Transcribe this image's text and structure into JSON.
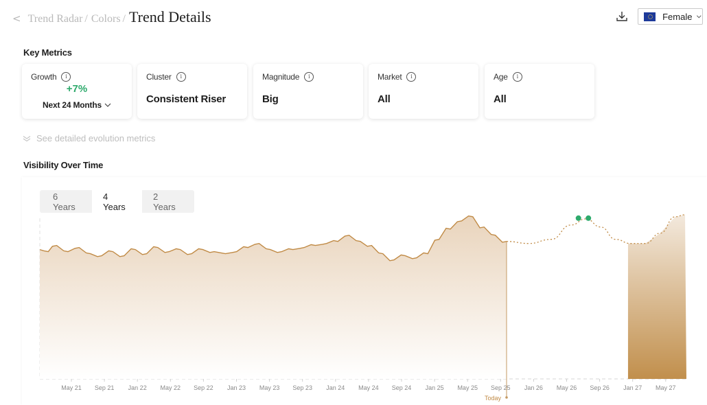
{
  "breadcrumb": {
    "back_glyph": "<",
    "items": [
      "Trend Radar",
      "Colors"
    ],
    "separator": "/",
    "current": "Trend Details"
  },
  "header": {
    "download_icon": "download-icon",
    "gender_select": {
      "flag": "eu-flag-icon",
      "value": "Female"
    }
  },
  "key_metrics": {
    "title": "Key Metrics",
    "cards": [
      {
        "label": "Growth",
        "value": "+7%",
        "period": "Next 24 Months"
      },
      {
        "label": "Cluster",
        "value": "Consistent Riser"
      },
      {
        "label": "Magnitude",
        "value": "Big"
      },
      {
        "label": "Market",
        "value": "All"
      },
      {
        "label": "Age",
        "value": "All"
      }
    ],
    "info_glyph": "i"
  },
  "see_more": "See detailed evolution metrics",
  "visibility": {
    "title": "Visibility Over Time",
    "tabs": [
      "6 Years",
      "4 Years",
      "2 Years"
    ],
    "active_tab": "4 Years"
  },
  "chart_data": {
    "type": "area",
    "x_ticks": [
      "May 21",
      "Sep 21",
      "Jan 22",
      "May 22",
      "Sep 22",
      "Jan 23",
      "May 23",
      "Sep 23",
      "Jan 24",
      "May 24",
      "Sep 24",
      "Jan 25",
      "May 25",
      "Sep 25",
      "Jan 26",
      "May 26",
      "Sep 26",
      "Jan 27",
      "May 27"
    ],
    "today_label": "Today",
    "today_index": 12.9,
    "ylim": [
      0,
      100
    ],
    "grid": false,
    "history": [
      {
        "x": 0.0,
        "y": 63
      },
      {
        "x": 0.3,
        "y": 62
      },
      {
        "x": 0.6,
        "y": 65
      },
      {
        "x": 1.0,
        "y": 62
      },
      {
        "x": 1.4,
        "y": 64
      },
      {
        "x": 1.8,
        "y": 61
      },
      {
        "x": 2.2,
        "y": 60
      },
      {
        "x": 2.6,
        "y": 62
      },
      {
        "x": 3.0,
        "y": 60
      },
      {
        "x": 3.4,
        "y": 63
      },
      {
        "x": 3.8,
        "y": 61
      },
      {
        "x": 4.2,
        "y": 64
      },
      {
        "x": 4.6,
        "y": 62
      },
      {
        "x": 5.0,
        "y": 63
      },
      {
        "x": 5.4,
        "y": 61
      },
      {
        "x": 5.8,
        "y": 63
      },
      {
        "x": 6.2,
        "y": 62
      },
      {
        "x": 6.6,
        "y": 61
      },
      {
        "x": 7.0,
        "y": 62
      },
      {
        "x": 7.4,
        "y": 64
      },
      {
        "x": 7.8,
        "y": 66
      },
      {
        "x": 8.2,
        "y": 63
      },
      {
        "x": 8.6,
        "y": 62
      },
      {
        "x": 9.0,
        "y": 63
      },
      {
        "x": 9.4,
        "y": 64
      },
      {
        "x": 9.8,
        "y": 65
      },
      {
        "x": 10.2,
        "y": 66
      },
      {
        "x": 10.6,
        "y": 67
      },
      {
        "x": 11.0,
        "y": 70
      },
      {
        "x": 11.4,
        "y": 67
      },
      {
        "x": 11.8,
        "y": 65
      },
      {
        "x": 12.2,
        "y": 61
      },
      {
        "x": 12.6,
        "y": 58
      },
      {
        "x": 13.0,
        "y": 60
      },
      {
        "x": 13.4,
        "y": 59
      },
      {
        "x": 13.8,
        "y": 61
      },
      {
        "x": 14.2,
        "y": 68
      },
      {
        "x": 14.6,
        "y": 73
      },
      {
        "x": 15.0,
        "y": 77
      },
      {
        "x": 15.4,
        "y": 79
      },
      {
        "x": 15.8,
        "y": 74
      },
      {
        "x": 16.2,
        "y": 70
      },
      {
        "x": 16.6,
        "y": 67
      }
    ],
    "forecast": [
      {
        "x": 16.6,
        "y": 67
      },
      {
        "x": 17.5,
        "y": 66
      },
      {
        "x": 18.4,
        "y": 68
      },
      {
        "x": 19.2,
        "y": 75
      },
      {
        "x": 19.8,
        "y": 78
      },
      {
        "x": 20.4,
        "y": 74
      },
      {
        "x": 21.0,
        "y": 68
      },
      {
        "x": 21.6,
        "y": 66
      },
      {
        "x": 22.2,
        "y": 66
      },
      {
        "x": 22.8,
        "y": 71
      },
      {
        "x": 23.4,
        "y": 79
      },
      {
        "x": 23.8,
        "y": 80
      }
    ],
    "forecast_markers": [
      {
        "x": 19.5,
        "y": 78
      },
      {
        "x": 19.9,
        "y": 78
      }
    ],
    "colors": {
      "line": "#c08a45",
      "forecast_line": "#c08a45",
      "fill_top": "#e9d4bc",
      "future_fill_top": "#f3e9dd",
      "future_fill_bottom": "#c18f4c",
      "marker": "#2eaa6c",
      "tick": "#8a8a8a",
      "today_line": "#c49a63"
    }
  }
}
